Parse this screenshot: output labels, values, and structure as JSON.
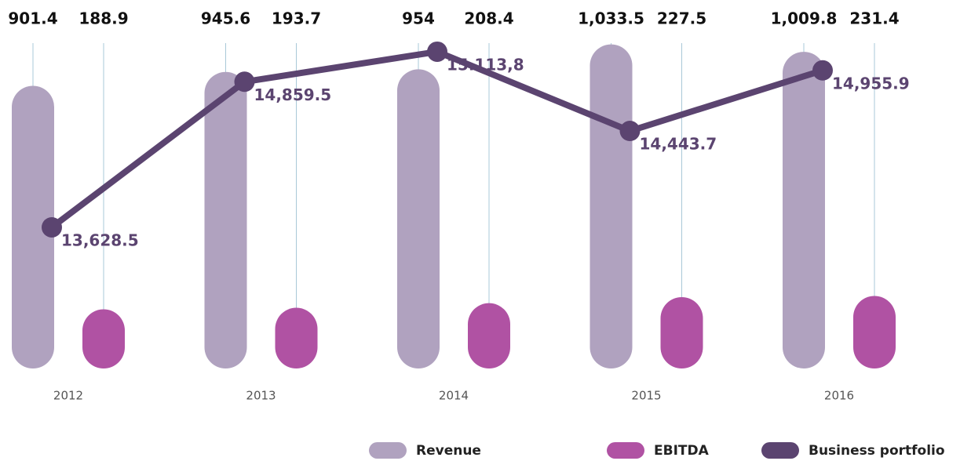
{
  "chart_data": {
    "type": "bar",
    "categories": [
      "2012",
      "2013",
      "2014",
      "2015",
      "2016"
    ],
    "series": [
      {
        "name": "Revenue",
        "color": "#b0a2bf",
        "values": [
          901.4,
          945.6,
          954,
          1033.5,
          1009.8
        ],
        "value_labels": [
          "901.4",
          "945.6",
          "954",
          "1,033.5",
          "1,009.8"
        ]
      },
      {
        "name": "EBITDA",
        "color": "#b052a3",
        "values": [
          188.9,
          193.7,
          208.4,
          227.5,
          231.4
        ]
      },
      {
        "name": "Business portfolio",
        "color": "#5b4470",
        "type": "line",
        "axis": "y2",
        "values": [
          13628.5,
          14859.5,
          15113.8,
          14443.7,
          14955.9
        ],
        "value_labels": [
          "13,628.5",
          "14,859.5",
          "15.113,8",
          "14,443.7",
          "14,955.9"
        ]
      }
    ],
    "ylim": [
      0,
      1175
    ],
    "y2lim": [
      12435,
      15551
    ]
  }
}
